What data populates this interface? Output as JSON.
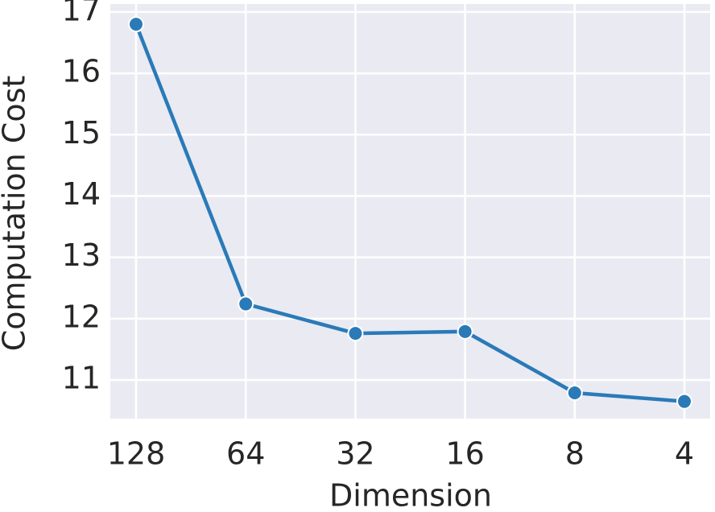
{
  "chart_data": {
    "type": "line",
    "xlabel": "Dimension",
    "ylabel": "Computation Cost",
    "categories": [
      "128",
      "64",
      "32",
      "16",
      "8",
      "4"
    ],
    "series": [
      {
        "name": "Computation Cost",
        "color": "#2a7ab8",
        "values": [
          16.8,
          12.24,
          11.76,
          11.79,
          10.79,
          10.65
        ]
      }
    ],
    "ylim": [
      10.37,
      17.13
    ],
    "yticks": [
      11,
      12,
      13,
      14,
      15,
      16,
      17
    ],
    "grid": true,
    "background": "#eaeaf2"
  }
}
